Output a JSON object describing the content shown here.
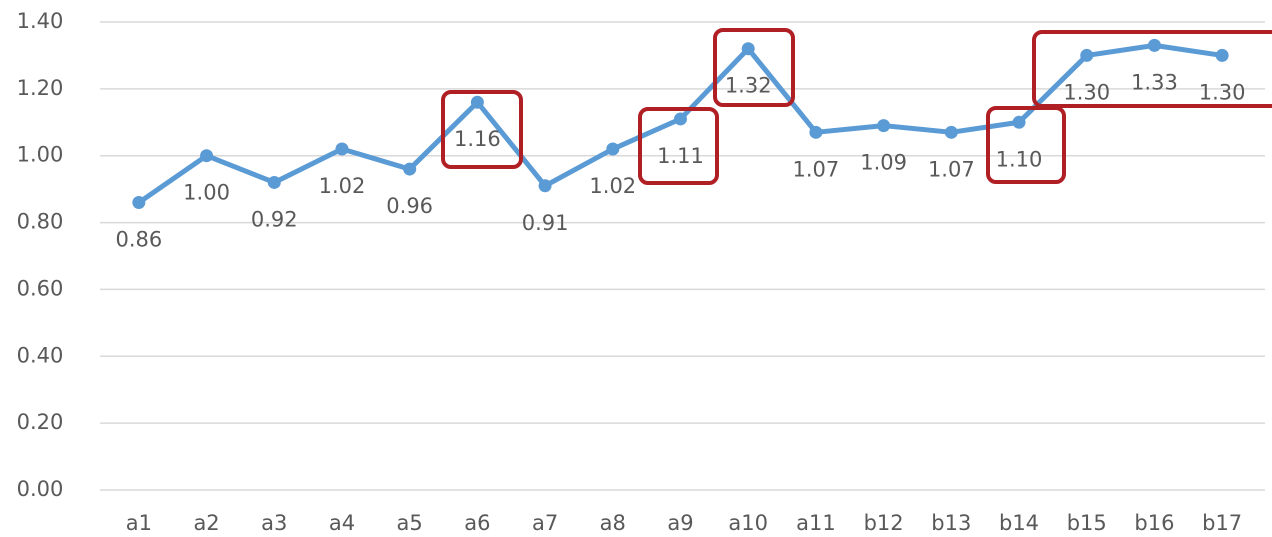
{
  "chart_data": {
    "type": "line",
    "categories": [
      "a1",
      "a2",
      "a3",
      "a4",
      "a5",
      "a6",
      "a7",
      "a8",
      "a9",
      "a10",
      "a11",
      "b12",
      "b13",
      "b14",
      "b15",
      "b16",
      "b17"
    ],
    "values": [
      0.86,
      1.0,
      0.92,
      1.02,
      0.96,
      1.16,
      0.91,
      1.02,
      1.11,
      1.32,
      1.07,
      1.09,
      1.07,
      1.1,
      1.3,
      1.33,
      1.3
    ],
    "value_labels": [
      "0.86",
      "1.00",
      "0.92",
      "1.02",
      "0.96",
      "1.16",
      "0.91",
      "1.02",
      "1.11",
      "1.32",
      "1.07",
      "1.09",
      "1.07",
      "1.10",
      "1.30",
      "1.33",
      "1.30"
    ],
    "color": "#5b9bd5",
    "ylim": [
      0,
      1.4
    ],
    "yticks": [
      {
        "value": 0,
        "label": "0.00"
      },
      {
        "value": 0.2,
        "label": "0.20"
      },
      {
        "value": 0.4,
        "label": "0.40"
      },
      {
        "value": 0.6,
        "label": "0.60"
      },
      {
        "value": 0.8,
        "label": "0.80"
      },
      {
        "value": 1,
        "label": "1.00"
      },
      {
        "value": 1.2,
        "label": "1.20"
      },
      {
        "value": 1.4,
        "label": "1.40"
      }
    ],
    "grid": true
  }
}
